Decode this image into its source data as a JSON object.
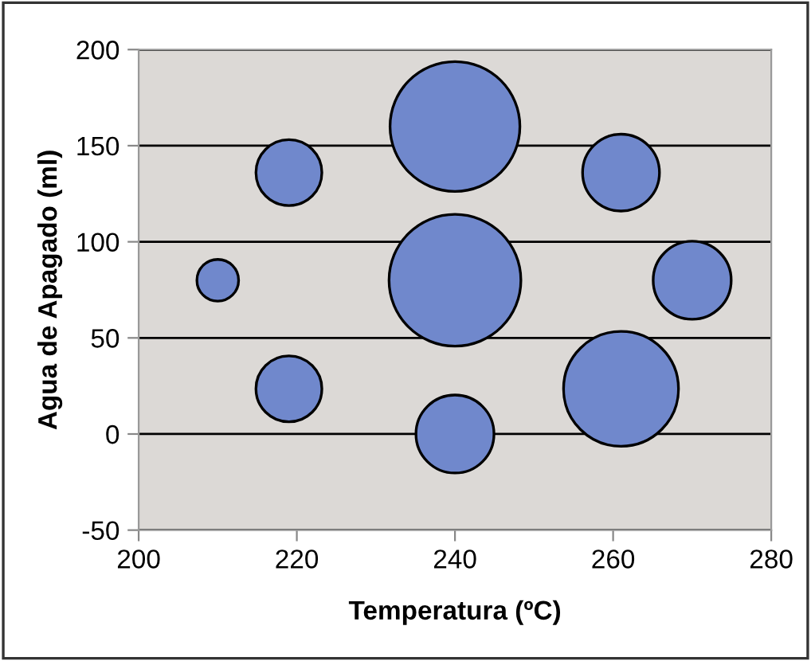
{
  "chart_data": {
    "type": "bubble",
    "xlabel": "Temperatura (ºC)",
    "ylabel": "Agua de Apagado (ml)",
    "x": [
      210,
      219,
      219,
      240,
      240,
      240,
      261,
      261,
      270
    ],
    "values": [
      80,
      136,
      23.5,
      160,
      80,
      0,
      136,
      23.5,
      80
    ],
    "sizes": [
      0.1,
      0.25,
      0.25,
      0.97,
      1,
      0.35,
      0.34,
      0.76,
      0.35
    ],
    "color": "#7088cc",
    "xlim": [
      200,
      280
    ],
    "xticks": [
      200,
      220,
      240,
      260,
      280
    ],
    "ylim": [
      -50,
      200
    ],
    "yticks": [
      -50,
      0,
      50,
      100,
      150,
      200
    ],
    "grid": "y",
    "legend": false
  }
}
